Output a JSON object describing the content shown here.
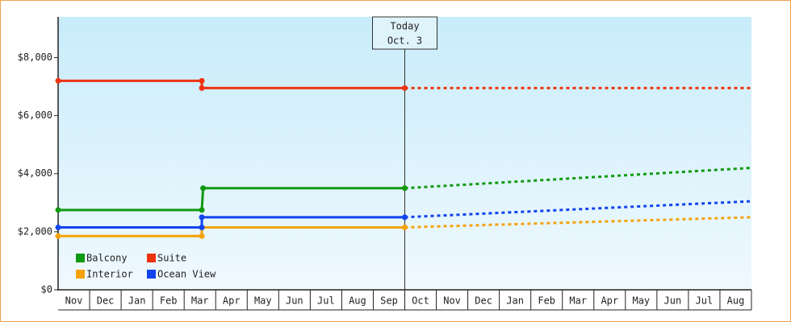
{
  "chart_data": {
    "type": "line",
    "categories": [
      "Nov",
      "Dec",
      "Jan",
      "Feb",
      "Mar",
      "Apr",
      "May",
      "Jun",
      "Jul",
      "Aug",
      "Sep",
      "Oct",
      "Nov",
      "Dec",
      "Jan",
      "Feb",
      "Mar",
      "Apr",
      "May",
      "Jun",
      "Jul",
      "Aug"
    ],
    "xlim": [
      0,
      22
    ],
    "ylim": [
      0,
      9400
    ],
    "yticks": [
      {
        "value": 0,
        "label": "$0"
      },
      {
        "value": 2000,
        "label": "$2,000"
      },
      {
        "value": 4000,
        "label": "$4,000"
      },
      {
        "value": 6000,
        "label": "$6,000"
      },
      {
        "value": 8000,
        "label": "$8,000"
      }
    ],
    "annotation": {
      "x": 11,
      "lines": [
        "Today",
        "Oct. 3"
      ]
    },
    "legend": "bottom-left",
    "series": [
      {
        "name": "Balcony",
        "color": "#119911",
        "x": [
          0,
          4.56,
          4.6,
          11,
          22
        ],
        "values": [
          2750,
          2750,
          3500,
          3500,
          4200
        ]
      },
      {
        "name": "Suite",
        "color": "#ee3311",
        "x": [
          0,
          4.56,
          4.56,
          11,
          22
        ],
        "values": [
          7200,
          7200,
          6950,
          6950,
          6950
        ]
      },
      {
        "name": "Interior",
        "color": "#f5a20a",
        "x": [
          0,
          4.56,
          4.56,
          11,
          22
        ],
        "values": [
          1850,
          1850,
          2150,
          2150,
          2500
        ]
      },
      {
        "name": "Ocean View",
        "color": "#1144ee",
        "x": [
          0,
          4.56,
          4.56,
          11,
          22
        ],
        "values": [
          2150,
          2150,
          2500,
          2500,
          3050
        ]
      }
    ]
  }
}
